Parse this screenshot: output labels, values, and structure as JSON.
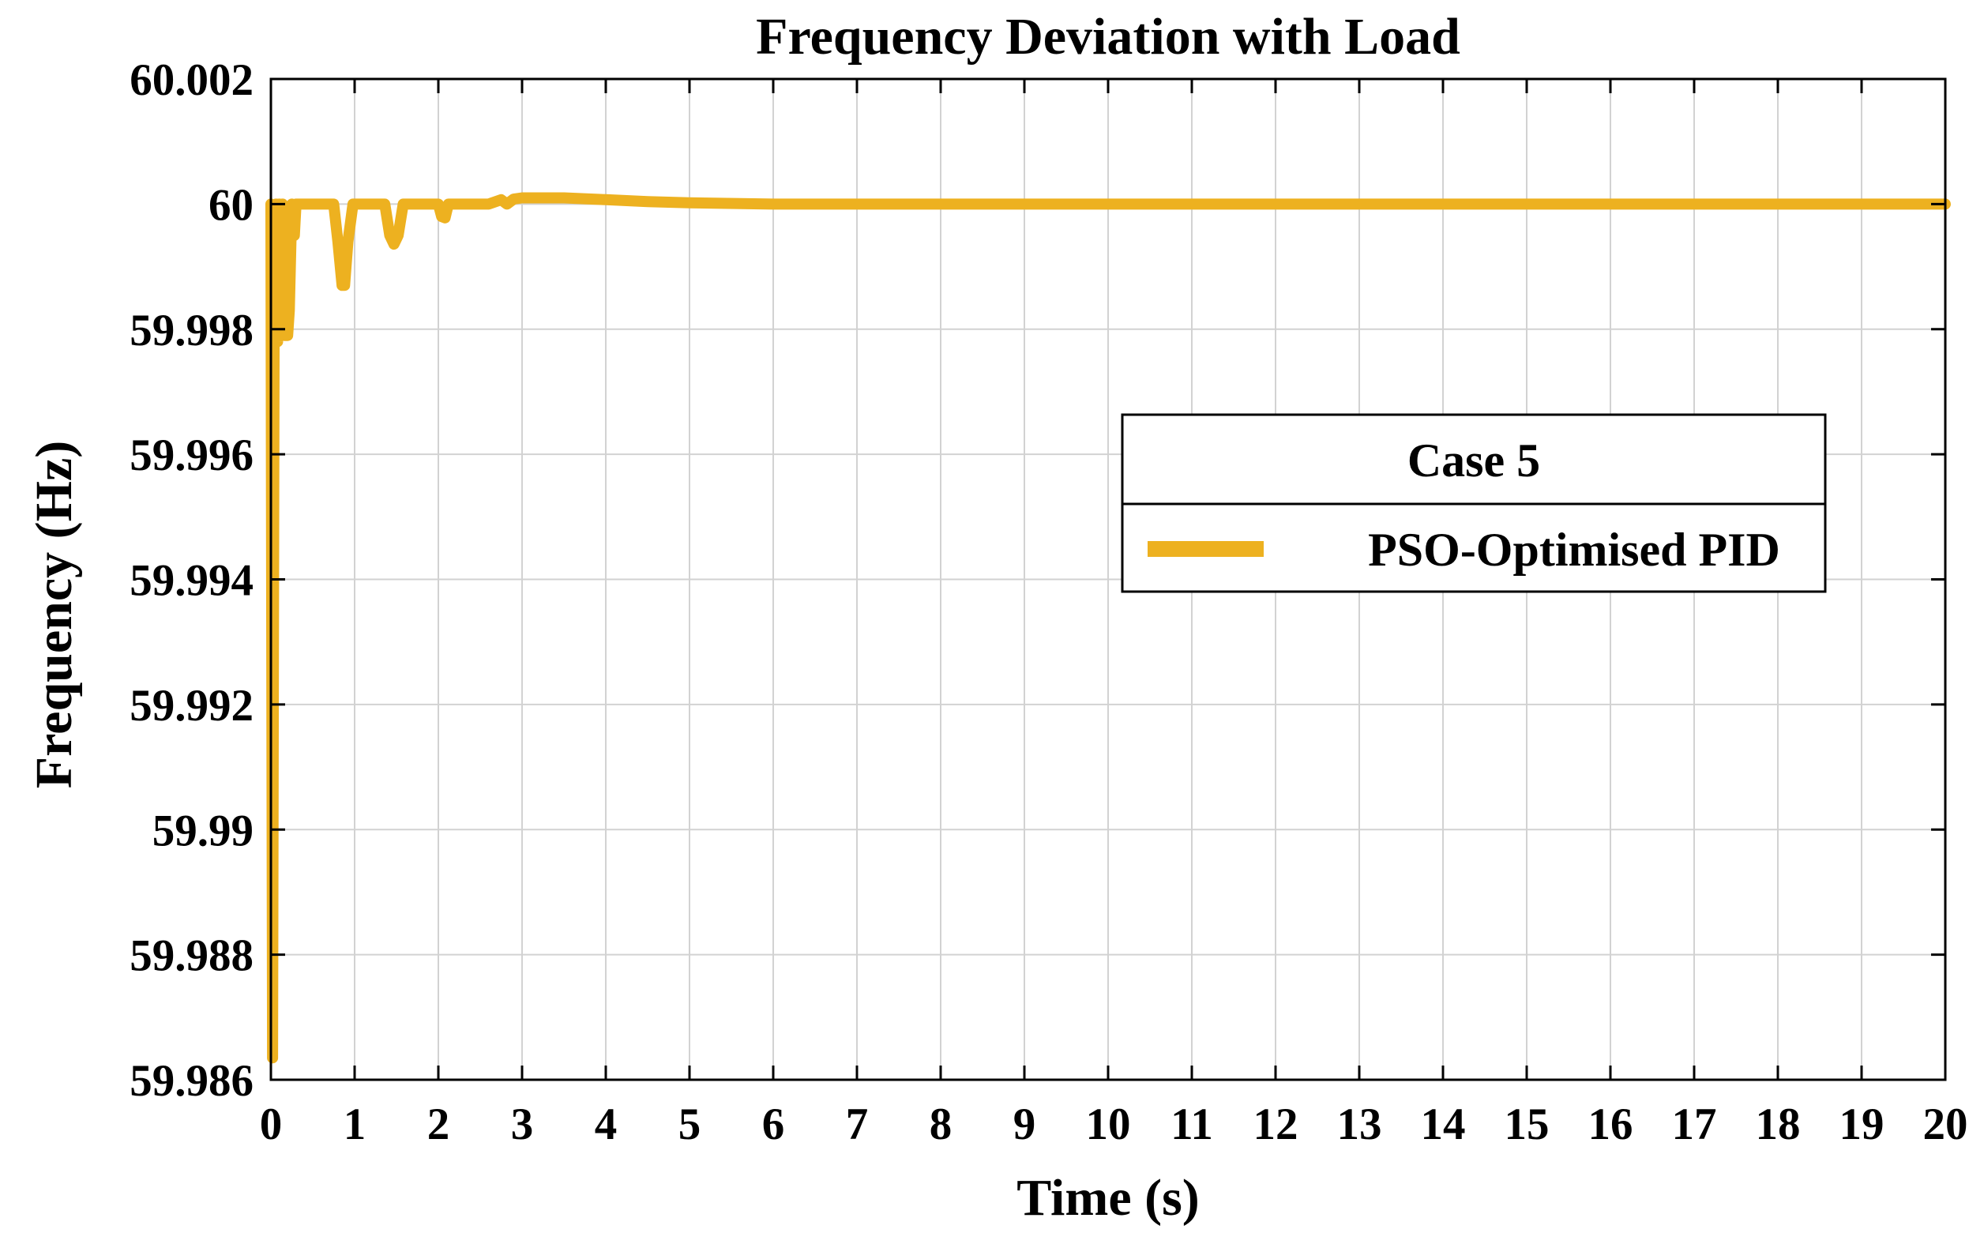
{
  "chart_data": {
    "type": "line",
    "title": "Frequency Deviation with Load",
    "xlabel": "Time (s)",
    "ylabel": "Frequency (Hz)",
    "xlim": [
      0,
      20
    ],
    "ylim": [
      59.986,
      60.002
    ],
    "x_ticks": [
      0,
      1,
      2,
      3,
      4,
      5,
      6,
      7,
      8,
      9,
      10,
      11,
      12,
      13,
      14,
      15,
      16,
      17,
      18,
      19,
      20
    ],
    "x_tick_labels": [
      "0",
      "1",
      "2",
      "3",
      "4",
      "5",
      "6",
      "7",
      "8",
      "9",
      "10",
      "11",
      "12",
      "13",
      "14",
      "15",
      "16",
      "17",
      "18",
      "19",
      "20"
    ],
    "y_ticks": [
      59.986,
      59.988,
      59.99,
      59.992,
      59.994,
      59.996,
      59.998,
      60,
      60.002
    ],
    "y_tick_labels": [
      "59.986",
      "59.988",
      "59.99",
      "59.992",
      "59.994",
      "59.996",
      "59.998",
      "60",
      "60.002"
    ],
    "grid": true,
    "legend": {
      "title": "Case 5",
      "position": "center-right"
    },
    "series": [
      {
        "name": "PSO-Optimised PID",
        "color": "#EDB120",
        "x": [
          0,
          0.02,
          0.04,
          0.06,
          0.08,
          0.1,
          0.12,
          0.14,
          0.16,
          0.2,
          0.22,
          0.25,
          0.28,
          0.3,
          0.32,
          0.35,
          0.7,
          0.75,
          0.8,
          0.85,
          0.88,
          0.92,
          0.98,
          1.3,
          1.36,
          1.42,
          1.47,
          1.52,
          1.58,
          2.0,
          2.04,
          2.08,
          2.12,
          2.6,
          2.75,
          2.82,
          2.9,
          3.0,
          3.5,
          4.0,
          4.5,
          5.0,
          6.0,
          8.0,
          10.0,
          12.0,
          14.0,
          16.0,
          18.0,
          20.0
        ],
        "y": [
          60.0,
          59.98635,
          59.9988,
          60.0,
          59.9978,
          60.0,
          59.9982,
          60.0,
          59.9979,
          59.9979,
          59.9983,
          60.0,
          59.9995,
          60.0,
          60.0,
          60.0,
          60.0,
          60.0,
          59.9994,
          59.9987,
          59.9987,
          59.9994,
          60.0,
          60.0,
          60.0,
          59.9995,
          59.99936,
          59.9995,
          60.0,
          60.0,
          59.9998,
          59.99978,
          60.0,
          60.0,
          60.00007,
          60.0,
          60.00008,
          60.0001,
          60.0001,
          60.00007,
          60.00004,
          60.00002,
          60.0,
          60.0,
          60.0,
          60.0,
          60.0,
          60.0,
          60.0,
          60.0
        ]
      }
    ]
  }
}
